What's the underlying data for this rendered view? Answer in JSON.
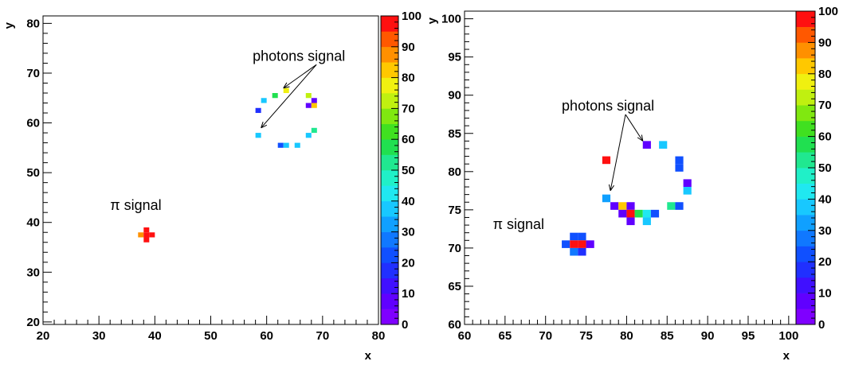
{
  "chart_data": [
    {
      "type": "heatmap",
      "title": "",
      "xlabel": "x",
      "ylabel": "y",
      "xlim": [
        20,
        80
      ],
      "ylim": [
        19.5,
        81.5
      ],
      "x_ticks": [
        20,
        30,
        40,
        50,
        60,
        70,
        80
      ],
      "y_ticks": [
        20,
        30,
        40,
        50,
        60,
        70,
        80
      ],
      "cell_size": 1,
      "zlim": [
        0,
        100
      ],
      "z_ticks": [
        0,
        10,
        20,
        30,
        40,
        50,
        60,
        70,
        80,
        90,
        100
      ],
      "annotations": [
        {
          "text": "photons signal",
          "x": 57.5,
          "y": 72.5,
          "arrows_to": [
            [
              63,
              67
            ],
            [
              59,
              59
            ]
          ]
        },
        {
          "text": "π signal",
          "x": 32,
          "y": 42.5,
          "arrows_to": []
        }
      ],
      "cells": [
        {
          "x": 63,
          "y": 66,
          "z": 75
        },
        {
          "x": 61,
          "y": 65,
          "z": 58
        },
        {
          "x": 59,
          "y": 64,
          "z": 38
        },
        {
          "x": 67,
          "y": 65,
          "z": 70
        },
        {
          "x": 68,
          "y": 64,
          "z": 5
        },
        {
          "x": 67,
          "y": 63,
          "z": 8
        },
        {
          "x": 68,
          "y": 63,
          "z": 82
        },
        {
          "x": 58,
          "y": 62,
          "z": 15
        },
        {
          "x": 68,
          "y": 58,
          "z": 50
        },
        {
          "x": 58,
          "y": 57,
          "z": 35
        },
        {
          "x": 67,
          "y": 57,
          "z": 38
        },
        {
          "x": 62,
          "y": 55,
          "z": 20
        },
        {
          "x": 63,
          "y": 55,
          "z": 35
        },
        {
          "x": 65,
          "y": 55,
          "z": 35
        },
        {
          "x": 38,
          "y": 38,
          "z": 100
        },
        {
          "x": 37,
          "y": 37,
          "z": 85
        },
        {
          "x": 38,
          "y": 37,
          "z": 100
        },
        {
          "x": 39,
          "y": 37,
          "z": 100
        },
        {
          "x": 38,
          "y": 36,
          "z": 100
        }
      ]
    },
    {
      "type": "heatmap",
      "title": "",
      "xlabel": "x",
      "ylabel": "y",
      "xlim": [
        60,
        101
      ],
      "ylim": [
        60,
        101
      ],
      "x_ticks": [
        60,
        65,
        70,
        75,
        80,
        85,
        90,
        95,
        100
      ],
      "y_ticks": [
        60,
        65,
        70,
        75,
        80,
        85,
        90,
        95,
        100
      ],
      "cell_size": 1,
      "zlim": [
        0,
        100
      ],
      "z_ticks": [
        0,
        10,
        20,
        30,
        40,
        50,
        60,
        70,
        80,
        90,
        100
      ],
      "annotations": [
        {
          "text": "photons signal",
          "x": 72,
          "y": 88,
          "arrows_to": [
            [
              82,
              84
            ],
            [
              78,
              77.5
            ]
          ]
        },
        {
          "text": "π signal",
          "x": 63.5,
          "y": 72.5,
          "arrows_to": []
        }
      ],
      "cells": [
        {
          "x": 82,
          "y": 83,
          "z": 5
        },
        {
          "x": 84,
          "y": 83,
          "z": 35
        },
        {
          "x": 86,
          "y": 81,
          "z": 20
        },
        {
          "x": 77,
          "y": 81,
          "z": 100
        },
        {
          "x": 86,
          "y": 80,
          "z": 20
        },
        {
          "x": 87,
          "y": 78,
          "z": 5
        },
        {
          "x": 87,
          "y": 77,
          "z": 35
        },
        {
          "x": 77,
          "y": 76,
          "z": 30
        },
        {
          "x": 78,
          "y": 75,
          "z": 5
        },
        {
          "x": 79,
          "y": 75,
          "z": 80
        },
        {
          "x": 80,
          "y": 75,
          "z": 8
        },
        {
          "x": 85,
          "y": 75,
          "z": 50
        },
        {
          "x": 86,
          "y": 75,
          "z": 20
        },
        {
          "x": 79,
          "y": 74,
          "z": 5
        },
        {
          "x": 80,
          "y": 74,
          "z": 100
        },
        {
          "x": 81,
          "y": 74,
          "z": 55
        },
        {
          "x": 82,
          "y": 74,
          "z": 40
        },
        {
          "x": 83,
          "y": 74,
          "z": 20
        },
        {
          "x": 80,
          "y": 73,
          "z": 5
        },
        {
          "x": 82,
          "y": 73,
          "z": 35
        },
        {
          "x": 73,
          "y": 71,
          "z": 20
        },
        {
          "x": 74,
          "y": 71,
          "z": 20
        },
        {
          "x": 72,
          "y": 70,
          "z": 20
        },
        {
          "x": 73,
          "y": 70,
          "z": 100
        },
        {
          "x": 74,
          "y": 70,
          "z": 100
        },
        {
          "x": 75,
          "y": 70,
          "z": 5
        },
        {
          "x": 73,
          "y": 69,
          "z": 25
        },
        {
          "x": 74,
          "y": 69,
          "z": 15
        }
      ]
    }
  ]
}
